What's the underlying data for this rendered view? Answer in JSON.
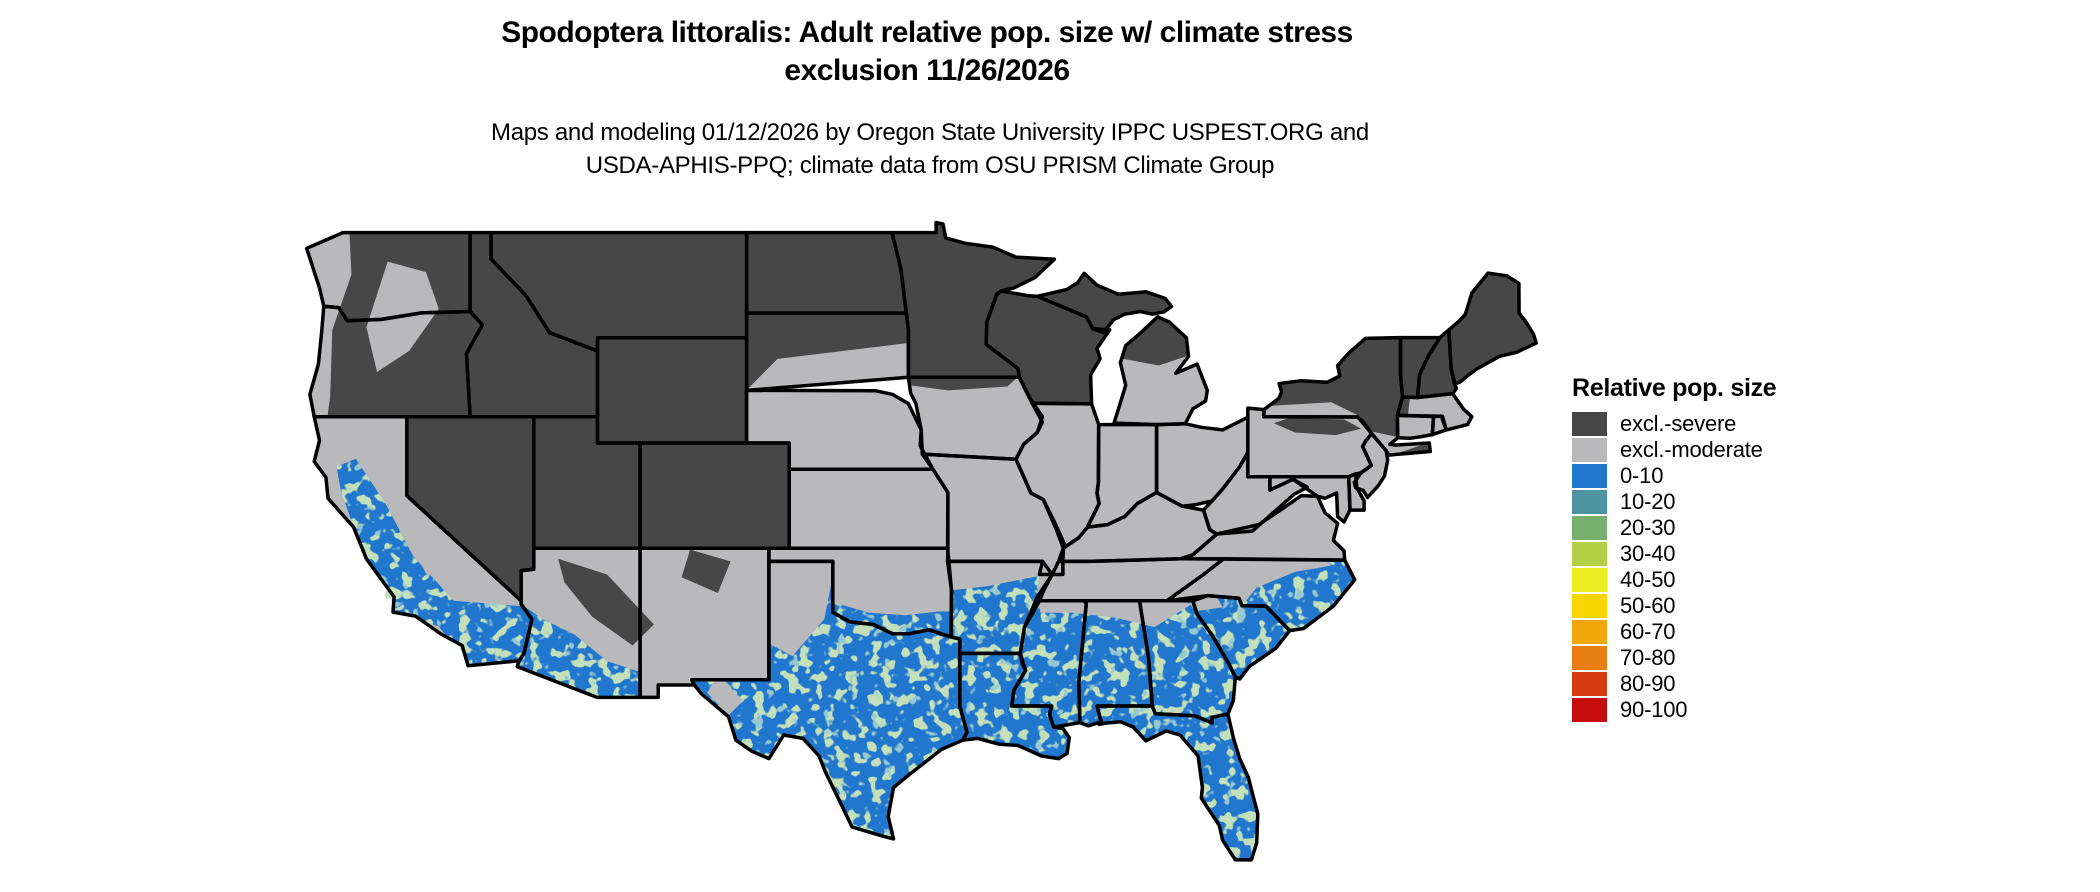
{
  "title": {
    "line1": "Spodoptera littoralis: Adult relative pop. size w/ climate stress",
    "line2": "exclusion 11/26/2026"
  },
  "subtitle": {
    "line1": "Maps and modeling 01/12/2026 by Oregon State University IPPC USPEST.ORG and",
    "line2": "USDA-APHIS-PPQ; climate data from OSU PRISM Climate Group"
  },
  "legend": {
    "title": "Relative pop. size",
    "items": [
      {
        "label": "excl.-severe",
        "color": "#474747"
      },
      {
        "label": "excl.-moderate",
        "color": "#b9b9bb"
      },
      {
        "label": "0-10",
        "color": "#2077cd"
      },
      {
        "label": "10-20",
        "color": "#4e93a2"
      },
      {
        "label": "20-30",
        "color": "#77b06e"
      },
      {
        "label": "30-40",
        "color": "#b3cf45"
      },
      {
        "label": "40-50",
        "color": "#ebed20"
      },
      {
        "label": "50-60",
        "color": "#f7d500"
      },
      {
        "label": "60-70",
        "color": "#efa70c"
      },
      {
        "label": "70-80",
        "color": "#e87d12"
      },
      {
        "label": "80-90",
        "color": "#d53b10"
      },
      {
        "label": "90-100",
        "color": "#c60d0d"
      }
    ]
  },
  "map": {
    "background": "#ffffff",
    "border_color": "#000000",
    "fill_classes": {
      "severe": "#474747",
      "moderate": "#b9b9bb",
      "pop": "#2077cd"
    },
    "speckles": {
      "green": "#8cbf7e",
      "teal": "#4e93a2"
    },
    "state_classes": {
      "WA": "severe",
      "OR": "severe",
      "CA": "moderate",
      "NV": "severe",
      "ID": "severe",
      "MT": "severe",
      "WY": "severe",
      "UT": "severe",
      "CO": "severe",
      "AZ": "moderate",
      "NM": "moderate",
      "ND": "severe",
      "SD": "severe",
      "NE": "moderate",
      "KS": "moderate",
      "OK": "moderate",
      "TX": "pop",
      "MN": "severe",
      "IA": "moderate",
      "MO": "moderate",
      "AR": "moderate",
      "LA": "pop",
      "WI": "severe",
      "MI_UP": "severe",
      "MI_L": "moderate",
      "IL": "moderate",
      "IN": "moderate",
      "OH": "moderate",
      "KY": "moderate",
      "TN": "moderate",
      "MS": "pop",
      "AL": "pop",
      "GA": "pop",
      "FL": "pop",
      "SC": "pop",
      "NC": "moderate",
      "VA": "moderate",
      "WV": "moderate",
      "PA": "moderate",
      "NY": "severe",
      "NJ": "moderate",
      "DE": "moderate",
      "MD": "moderate",
      "VT": "severe",
      "NH": "severe",
      "ME": "severe",
      "MA": "moderate",
      "CT": "moderate",
      "RI": "moderate"
    }
  }
}
